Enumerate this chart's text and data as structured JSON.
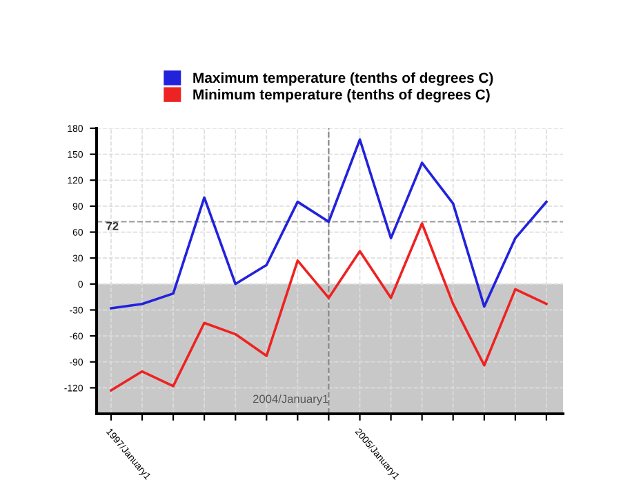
{
  "chart_data": {
    "type": "line",
    "x": [
      "1997-01-01",
      "1998-01-01",
      "1999-01-01",
      "2000-01-01",
      "2001-01-01",
      "2002-01-01",
      "2003-01-01",
      "2004-01-01",
      "2005-01-01",
      "2006-01-01",
      "2007-01-01",
      "2008-01-01",
      "2009-01-01",
      "2010-01-01",
      "2011-01-01"
    ],
    "series": [
      {
        "name": "Maximum temperature (tenths of degrees C)",
        "color": "#2222dd",
        "values": [
          -28,
          -23,
          -11,
          100,
          0,
          22,
          95,
          72,
          167,
          53,
          140,
          93,
          -26,
          53,
          95
        ]
      },
      {
        "name": "Minimum temperature (tenths of degrees C)",
        "color": "#ee2222",
        "values": [
          -123,
          -101,
          -118,
          -45,
          -58,
          -83,
          27,
          -16,
          38,
          -16,
          70,
          -23,
          -94,
          -6,
          -23
        ]
      }
    ],
    "xlim": [
      "1996-07-15",
      "2011-07-15"
    ],
    "xticks": [
      {
        "value": "1997-01-01",
        "label": "1997/January1"
      },
      {
        "value": "1998-01-01",
        "label": null
      },
      {
        "value": "1999-01-01",
        "label": null
      },
      {
        "value": "2000-01-01",
        "label": null
      },
      {
        "value": "2001-01-01",
        "label": null
      },
      {
        "value": "2002-01-01",
        "label": null
      },
      {
        "value": "2003-01-01",
        "label": null
      },
      {
        "value": "2004-01-01",
        "label": null
      },
      {
        "value": "2005-01-01",
        "label": "2005/January1"
      },
      {
        "value": "2006-01-01",
        "label": null
      },
      {
        "value": "2007-01-01",
        "label": null
      },
      {
        "value": "2008-01-01",
        "label": null
      },
      {
        "value": "2009-01-01",
        "label": null
      },
      {
        "value": "2010-01-01",
        "label": null
      },
      {
        "value": "2011-01-01",
        "label": null
      }
    ],
    "ylim": [
      -150,
      180
    ],
    "yticks": [
      -120,
      -90,
      -60,
      -30,
      0,
      30,
      60,
      90,
      120,
      150,
      180
    ],
    "bands": [
      {
        "axis": "y",
        "from": -150,
        "to": 0,
        "color": "#c8c8c8"
      }
    ],
    "ref_lines": [
      {
        "axis": "y",
        "value": 72,
        "label": "72",
        "color": "#999999",
        "line_style": "dashed"
      },
      {
        "axis": "x",
        "value": "2004-01-01",
        "label": "2004/January1",
        "color": "#888888",
        "line_style": "dashed"
      }
    ],
    "grid": true,
    "legend": "top",
    "marker": "none",
    "line_style": "solid"
  }
}
